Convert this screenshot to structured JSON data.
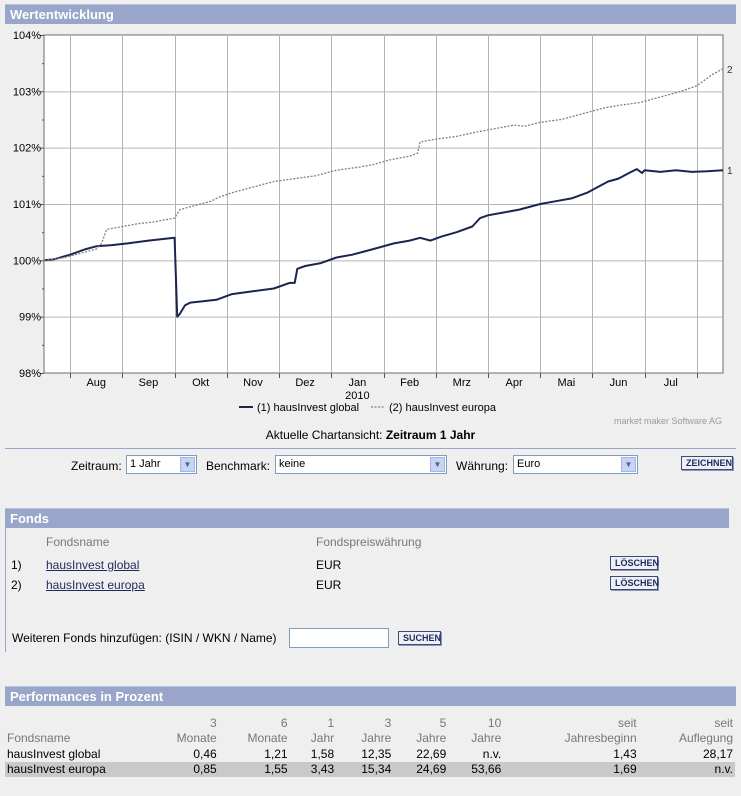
{
  "chart_section": {
    "title": "Wertentwicklung",
    "watermark": "market maker Software AG",
    "current_view_label": "Aktuelle Chartansicht:",
    "current_view_value": "Zeitraum 1 Jahr"
  },
  "chart_data": {
    "type": "line",
    "title": "Wertentwicklung",
    "xlabel": "",
    "ylabel": "",
    "ylim": [
      98,
      104
    ],
    "y_ticks": [
      "98%",
      "99%",
      "100%",
      "101%",
      "102%",
      "103%",
      "104%"
    ],
    "x_ticks": [
      "Aug",
      "Sep",
      "Okt",
      "Nov",
      "Dez",
      "Jan",
      "Feb",
      "Mrz",
      "Apr",
      "Mai",
      "Jun",
      "Jul"
    ],
    "year_label": "2010",
    "x_unit": "months since start (mid-July 2009)",
    "series": [
      {
        "name": "hausInvest global",
        "legend": "(1) hausInvest global",
        "end_label": "1",
        "color": "#1c2450",
        "style": "solid",
        "points": [
          [
            0,
            100.0
          ],
          [
            0.2,
            100.02
          ],
          [
            0.5,
            100.1
          ],
          [
            0.8,
            100.2
          ],
          [
            1.0,
            100.25
          ],
          [
            1.3,
            100.27
          ],
          [
            1.6,
            100.3
          ],
          [
            2.0,
            100.35
          ],
          [
            2.3,
            100.38
          ],
          [
            2.5,
            100.4
          ],
          [
            2.55,
            99.0
          ],
          [
            2.6,
            99.05
          ],
          [
            2.7,
            99.2
          ],
          [
            2.8,
            99.25
          ],
          [
            3.0,
            99.27
          ],
          [
            3.3,
            99.3
          ],
          [
            3.6,
            99.4
          ],
          [
            4.0,
            99.45
          ],
          [
            4.4,
            99.5
          ],
          [
            4.7,
            99.6
          ],
          [
            4.8,
            99.6
          ],
          [
            4.85,
            99.85
          ],
          [
            5.0,
            99.9
          ],
          [
            5.3,
            99.95
          ],
          [
            5.6,
            100.05
          ],
          [
            5.9,
            100.1
          ],
          [
            6.3,
            100.2
          ],
          [
            6.7,
            100.3
          ],
          [
            7.0,
            100.35
          ],
          [
            7.2,
            100.4
          ],
          [
            7.4,
            100.35
          ],
          [
            7.6,
            100.42
          ],
          [
            7.9,
            100.5
          ],
          [
            8.2,
            100.6
          ],
          [
            8.35,
            100.75
          ],
          [
            8.5,
            100.8
          ],
          [
            8.8,
            100.85
          ],
          [
            9.1,
            100.9
          ],
          [
            9.5,
            101.0
          ],
          [
            9.8,
            101.05
          ],
          [
            10.1,
            101.1
          ],
          [
            10.4,
            101.2
          ],
          [
            10.6,
            101.3
          ],
          [
            10.8,
            101.4
          ],
          [
            11.0,
            101.45
          ],
          [
            11.2,
            101.55
          ],
          [
            11.35,
            101.62
          ],
          [
            11.45,
            101.55
          ],
          [
            11.5,
            101.6
          ],
          [
            11.8,
            101.57
          ],
          [
            12.1,
            101.6
          ],
          [
            12.4,
            101.57
          ],
          [
            12.7,
            101.58
          ],
          [
            13.0,
            101.6
          ]
        ]
      },
      {
        "name": "hausInvest europa",
        "legend": "(2) hausInvest europa",
        "end_label": "2",
        "color": "#808080",
        "style": "dashed",
        "points": [
          [
            0,
            100.0
          ],
          [
            0.4,
            100.05
          ],
          [
            0.8,
            100.15
          ],
          [
            1.0,
            100.2
          ],
          [
            1.1,
            100.3
          ],
          [
            1.2,
            100.55
          ],
          [
            1.5,
            100.6
          ],
          [
            1.8,
            100.65
          ],
          [
            2.1,
            100.68
          ],
          [
            2.5,
            100.75
          ],
          [
            2.6,
            100.9
          ],
          [
            3.0,
            101.0
          ],
          [
            3.2,
            101.05
          ],
          [
            3.35,
            101.12
          ],
          [
            3.6,
            101.2
          ],
          [
            4.0,
            101.3
          ],
          [
            4.4,
            101.4
          ],
          [
            4.8,
            101.45
          ],
          [
            5.2,
            101.5
          ],
          [
            5.6,
            101.6
          ],
          [
            6.0,
            101.65
          ],
          [
            6.3,
            101.7
          ],
          [
            6.6,
            101.78
          ],
          [
            7.0,
            101.85
          ],
          [
            7.15,
            101.9
          ],
          [
            7.2,
            102.1
          ],
          [
            7.5,
            102.15
          ],
          [
            7.9,
            102.2
          ],
          [
            8.3,
            102.28
          ],
          [
            8.7,
            102.35
          ],
          [
            9.0,
            102.4
          ],
          [
            9.2,
            102.38
          ],
          [
            9.5,
            102.45
          ],
          [
            9.9,
            102.5
          ],
          [
            10.3,
            102.6
          ],
          [
            10.7,
            102.7
          ],
          [
            11.0,
            102.75
          ],
          [
            11.4,
            102.8
          ],
          [
            11.8,
            102.9
          ],
          [
            12.2,
            103.0
          ],
          [
            12.5,
            103.1
          ],
          [
            12.8,
            103.3
          ],
          [
            13.0,
            103.4
          ]
        ]
      }
    ]
  },
  "controls": {
    "zeitraum_label": "Zeitraum:",
    "zeitraum_value": "1 Jahr",
    "benchmark_label": "Benchmark:",
    "benchmark_value": "keine",
    "waehrung_label": "Währung:",
    "waehrung_value": "Euro",
    "zeichnen_label": "ZEICHNEN"
  },
  "fonds": {
    "title": "Fonds",
    "col_name": "Fondsname",
    "col_currency": "Fondspreiswährung",
    "rows": [
      {
        "index": "1)",
        "name": "hausInvest global",
        "currency": "EUR",
        "delete_label": "LÖSCHEN"
      },
      {
        "index": "2)",
        "name": "hausInvest europa",
        "currency": "EUR",
        "delete_label": "LÖSCHEN"
      }
    ],
    "add_label": "Weiteren Fonds hinzufügen: (ISIN / WKN / Name)",
    "add_input_value": "",
    "search_label": "SUCHEN"
  },
  "performance": {
    "title": "Performances in Prozent",
    "headers": [
      {
        "top": "",
        "bottom": "Fondsname"
      },
      {
        "top": "3",
        "bottom": "Monate"
      },
      {
        "top": "6",
        "bottom": "Monate"
      },
      {
        "top": "1",
        "bottom": "Jahr"
      },
      {
        "top": "3",
        "bottom": "Jahre"
      },
      {
        "top": "5",
        "bottom": "Jahre"
      },
      {
        "top": "10",
        "bottom": "Jahre"
      },
      {
        "top": "seit",
        "bottom": "Jahresbeginn"
      },
      {
        "top": "seit",
        "bottom": "Auflegung"
      }
    ],
    "rows": [
      [
        "hausInvest global",
        "0,46",
        "1,21",
        "1,58",
        "12,35",
        "22,69",
        "n.v.",
        "1,43",
        "28,17"
      ],
      [
        "hausInvest europa",
        "0,85",
        "1,55",
        "3,43",
        "15,34",
        "24,69",
        "53,66",
        "1,69",
        "n.v."
      ]
    ]
  }
}
